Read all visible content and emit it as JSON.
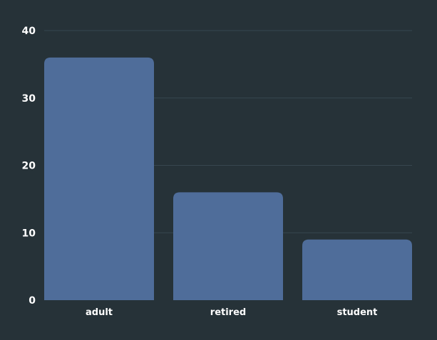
{
  "chart_data": {
    "type": "bar",
    "categories": [
      "adult",
      "retired",
      "student"
    ],
    "values": [
      36,
      16,
      9
    ],
    "title": "",
    "xlabel": "",
    "ylabel": "",
    "ylim": [
      0,
      40
    ],
    "yticks": [
      0,
      10,
      20,
      30,
      40
    ],
    "grid": true,
    "legend": "none",
    "colors": {
      "background": "#263238",
      "bar": "#4f6d9a",
      "grid": "#37474f",
      "text": "#ffffff"
    }
  }
}
